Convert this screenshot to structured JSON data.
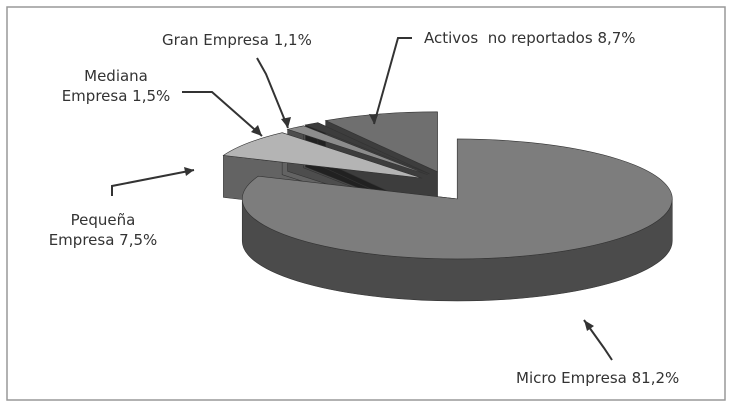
{
  "chart_data": {
    "type": "pie3d",
    "categories": [
      "Micro Empresa",
      "Pequeña Empresa",
      "Mediana Empresa",
      "Gran Empresa",
      "Activos  no reportados"
    ],
    "values": [
      81.2,
      7.5,
      1.5,
      1.1,
      8.7
    ],
    "value_labels": [
      "81,2%",
      "7,5%",
      "1,5%",
      "1,1%",
      "8,7%"
    ],
    "colors": [
      "#7d7d7d",
      "#b4b4b4",
      "#8c8c8c",
      "#3c3c3c",
      "#6f6f6f"
    ]
  }
}
